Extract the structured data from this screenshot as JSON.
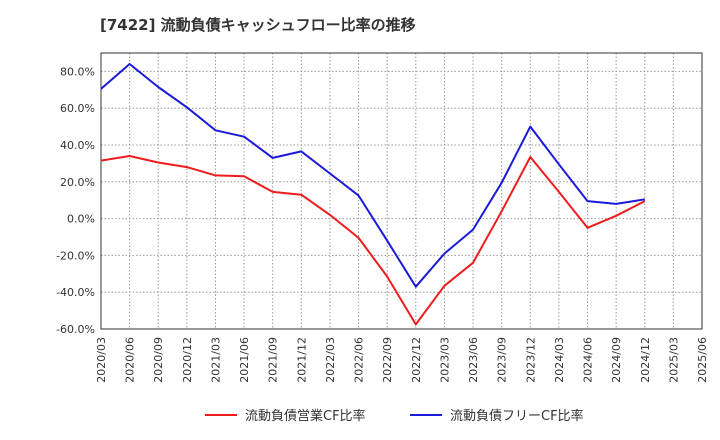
{
  "chart_data": {
    "type": "line",
    "title": "[7422]  流動負債キャッシュフロー比率の推移",
    "xlabel": "",
    "ylabel": "",
    "x": [
      "2020/03",
      "2020/06",
      "2020/09",
      "2020/12",
      "2021/03",
      "2021/06",
      "2021/09",
      "2021/12",
      "2022/03",
      "2022/06",
      "2022/09",
      "2022/12",
      "2023/03",
      "2023/06",
      "2023/09",
      "2023/12",
      "2024/03",
      "2024/06",
      "2024/09",
      "2024/12",
      "2025/03",
      "2025/06"
    ],
    "ylim": [
      -60,
      90
    ],
    "yticks": [
      -60,
      -40,
      -20,
      0,
      20,
      40,
      60,
      80
    ],
    "ytick_labels": [
      "-60.0%",
      "-40.0%",
      "-20.0%",
      "0.0%",
      "20.0%",
      "40.0%",
      "60.0%",
      "80.0%"
    ],
    "grid": true,
    "legend_position": "bottom",
    "series": [
      {
        "name": "流動負債営業CF比率",
        "color": "#ee1c1c",
        "values": [
          31.5,
          34.0,
          30.5,
          28.0,
          23.5,
          23.0,
          14.5,
          13.0,
          2.0,
          -10.5,
          -31.5,
          -57.5,
          -36.5,
          -24.0,
          4.0,
          33.5,
          14.5,
          -5.0,
          1.5,
          9.5,
          null,
          null
        ]
      },
      {
        "name": "流動負債フリーCF比率",
        "color": "#1a1adb",
        "values": [
          70.5,
          84.0,
          71.5,
          60.5,
          48.0,
          44.5,
          33.0,
          36.5,
          24.5,
          12.5,
          -12.0,
          -37.0,
          -19.0,
          -6.0,
          19.5,
          50.0,
          29.5,
          9.5,
          8.0,
          10.5,
          null,
          null
        ]
      }
    ]
  }
}
